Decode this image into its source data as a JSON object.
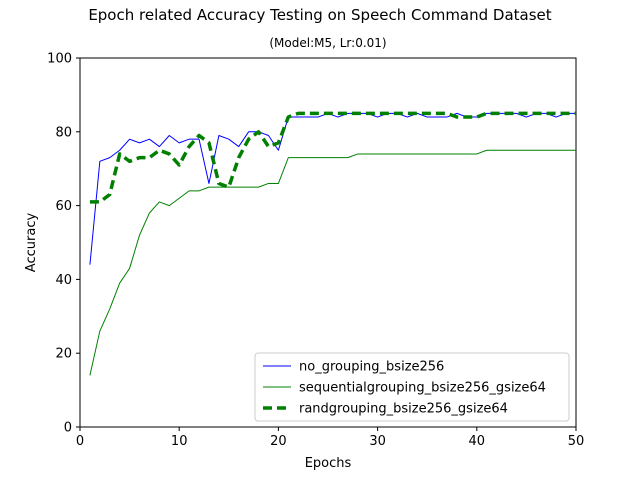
{
  "chart_data": {
    "type": "line",
    "title": "Epoch related Accuracy Testing on Speech Command Dataset",
    "subtitle": "(Model:M5, Lr:0.01)",
    "xlabel": "Epochs",
    "ylabel": "Accuracy",
    "xlim": [
      0,
      50
    ],
    "ylim": [
      0,
      100
    ],
    "xticks": [
      0,
      10,
      20,
      30,
      40,
      50
    ],
    "yticks": [
      0,
      20,
      40,
      60,
      80,
      100
    ],
    "grid": false,
    "legend_position": "lower-right",
    "x": [
      1,
      2,
      3,
      4,
      5,
      6,
      7,
      8,
      9,
      10,
      11,
      12,
      13,
      14,
      15,
      16,
      17,
      18,
      19,
      20,
      21,
      22,
      23,
      24,
      25,
      26,
      27,
      28,
      29,
      30,
      31,
      32,
      33,
      34,
      35,
      36,
      37,
      38,
      39,
      40,
      41,
      42,
      43,
      44,
      45,
      46,
      47,
      48,
      49,
      50
    ],
    "series": [
      {
        "name": "no_grouping_bsize256",
        "color": "#0000ff",
        "style": "solid",
        "values": [
          44,
          72,
          73,
          75,
          78,
          77,
          78,
          76,
          79,
          77,
          78,
          78,
          66,
          79,
          78,
          76,
          80,
          80,
          79,
          75,
          84,
          84,
          84,
          84,
          85,
          84,
          85,
          85,
          85,
          84,
          85,
          85,
          84,
          85,
          84,
          84,
          84,
          85,
          84,
          84,
          85,
          85,
          85,
          85,
          84,
          85,
          85,
          84,
          85,
          85
        ]
      },
      {
        "name": "sequentialgrouping_bsize256_gsize64",
        "color": "#008000",
        "style": "solid",
        "values": [
          14,
          26,
          32,
          39,
          43,
          52,
          58,
          61,
          60,
          62,
          64,
          64,
          65,
          65,
          65,
          65,
          65,
          65,
          66,
          66,
          73,
          73,
          73,
          73,
          73,
          73,
          73,
          74,
          74,
          74,
          74,
          74,
          74,
          74,
          74,
          74,
          74,
          74,
          74,
          74,
          75,
          75,
          75,
          75,
          75,
          75,
          75,
          75,
          75,
          75
        ]
      },
      {
        "name": "randgrouping_bsize256_gsize64",
        "color": "#008000",
        "style": "dashed",
        "values": [
          61,
          61,
          63,
          74,
          72,
          73,
          73,
          75,
          74,
          71,
          76,
          79,
          77,
          66,
          65,
          73,
          78,
          80,
          76,
          77,
          84,
          85,
          85,
          85,
          85,
          85,
          85,
          85,
          85,
          85,
          85,
          85,
          85,
          85,
          85,
          85,
          85,
          84,
          84,
          84,
          85,
          85,
          85,
          85,
          85,
          85,
          85,
          85,
          85,
          85
        ]
      }
    ]
  }
}
